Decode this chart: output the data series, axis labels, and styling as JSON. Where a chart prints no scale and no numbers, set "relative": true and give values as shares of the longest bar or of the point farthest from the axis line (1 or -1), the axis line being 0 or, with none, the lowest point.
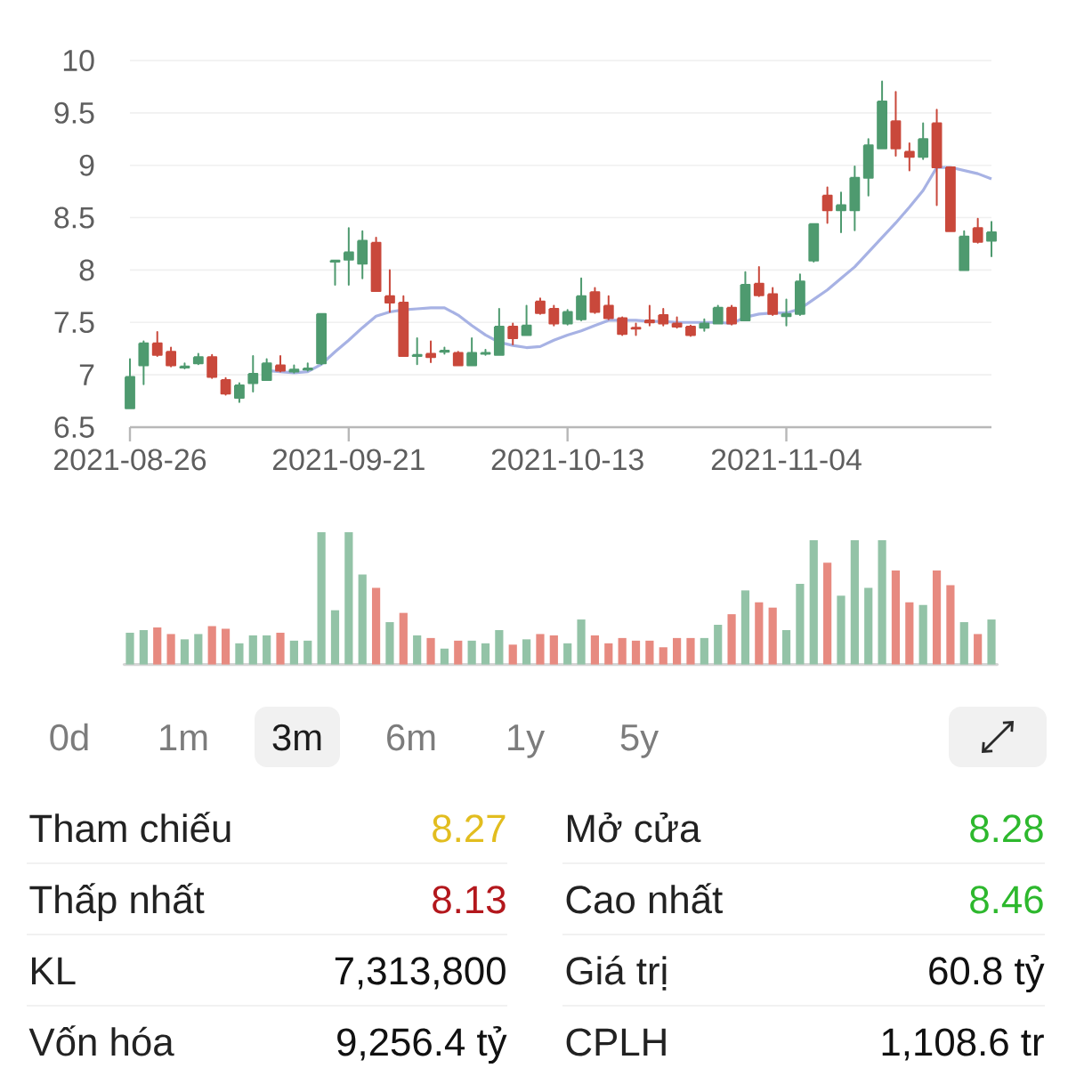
{
  "chart_data": [
    {
      "type": "candlestick",
      "categories": [
        "2021-08-26",
        null,
        null,
        null,
        null,
        null,
        null,
        null,
        null,
        null,
        null,
        null,
        null,
        null,
        null,
        null,
        "2021-09-21",
        null,
        null,
        null,
        null,
        null,
        null,
        null,
        null,
        null,
        null,
        null,
        null,
        null,
        null,
        null,
        "2021-10-13",
        null,
        null,
        null,
        null,
        null,
        null,
        null,
        null,
        null,
        null,
        null,
        null,
        null,
        null,
        null,
        "2021-11-04",
        null,
        null,
        null,
        null,
        null,
        null,
        null,
        null,
        null,
        null,
        null,
        null,
        null,
        null,
        null
      ],
      "ohlc": [
        [
          6.68,
          7.15,
          6.68,
          6.98
        ],
        [
          7.09,
          7.32,
          6.91,
          7.3
        ],
        [
          7.3,
          7.41,
          7.18,
          7.19
        ],
        [
          7.22,
          7.26,
          7.08,
          7.09
        ],
        [
          7.07,
          7.11,
          7.06,
          7.08
        ],
        [
          7.11,
          7.2,
          7.1,
          7.17
        ],
        [
          7.17,
          7.19,
          6.97,
          6.98
        ],
        [
          6.95,
          6.97,
          6.81,
          6.82
        ],
        [
          6.78,
          6.92,
          6.74,
          6.9
        ],
        [
          6.92,
          7.18,
          6.84,
          7.01
        ],
        [
          6.95,
          7.15,
          6.95,
          7.11
        ],
        [
          7.09,
          7.18,
          7.03,
          7.04
        ],
        [
          7.03,
          7.09,
          7.02,
          7.05
        ],
        [
          7.05,
          7.11,
          7.04,
          7.06
        ],
        [
          7.11,
          7.58,
          7.1,
          7.58
        ],
        [
          8.08,
          8.09,
          7.86,
          8.09
        ],
        [
          8.1,
          8.4,
          7.86,
          8.17
        ],
        [
          8.06,
          8.37,
          7.92,
          8.28
        ],
        [
          8.26,
          8.31,
          7.8,
          7.8
        ],
        [
          7.75,
          8.0,
          7.6,
          7.69
        ],
        [
          7.69,
          7.75,
          7.18,
          7.18
        ],
        [
          7.18,
          7.35,
          7.1,
          7.19
        ],
        [
          7.2,
          7.32,
          7.12,
          7.17
        ],
        [
          7.22,
          7.26,
          7.2,
          7.23
        ],
        [
          7.21,
          7.22,
          7.09,
          7.09
        ],
        [
          7.09,
          7.35,
          7.09,
          7.21
        ],
        [
          7.2,
          7.24,
          7.19,
          7.21
        ],
        [
          7.19,
          7.63,
          7.19,
          7.46
        ],
        [
          7.46,
          7.49,
          7.29,
          7.35
        ],
        [
          7.38,
          7.66,
          7.38,
          7.47
        ],
        [
          7.7,
          7.73,
          7.58,
          7.59
        ],
        [
          7.63,
          7.66,
          7.47,
          7.49
        ],
        [
          7.49,
          7.62,
          7.48,
          7.6
        ],
        [
          7.53,
          7.92,
          7.52,
          7.75
        ],
        [
          7.79,
          7.83,
          7.59,
          7.6
        ],
        [
          7.66,
          7.75,
          7.53,
          7.54
        ],
        [
          7.54,
          7.55,
          7.38,
          7.39
        ],
        [
          7.45,
          7.49,
          7.38,
          7.44
        ],
        [
          7.52,
          7.66,
          7.47,
          7.5
        ],
        [
          7.57,
          7.63,
          7.47,
          7.49
        ],
        [
          7.49,
          7.55,
          7.45,
          7.46
        ],
        [
          7.46,
          7.47,
          7.37,
          7.38
        ],
        [
          7.45,
          7.53,
          7.42,
          7.49
        ],
        [
          7.49,
          7.66,
          7.49,
          7.64
        ],
        [
          7.64,
          7.66,
          7.48,
          7.49
        ],
        [
          7.52,
          7.98,
          7.52,
          7.86
        ],
        [
          7.87,
          8.03,
          7.75,
          7.76
        ],
        [
          7.77,
          7.83,
          7.57,
          7.58
        ],
        [
          7.56,
          7.72,
          7.47,
          7.58
        ],
        [
          7.58,
          7.96,
          7.57,
          7.89
        ],
        [
          8.09,
          8.44,
          8.08,
          8.44
        ],
        [
          8.71,
          8.79,
          8.45,
          8.57
        ],
        [
          8.57,
          8.74,
          8.36,
          8.62
        ],
        [
          8.57,
          8.99,
          8.38,
          8.88
        ],
        [
          8.88,
          9.25,
          8.71,
          9.19
        ],
        [
          9.16,
          9.8,
          9.16,
          9.61
        ],
        [
          9.42,
          9.7,
          9.09,
          9.16
        ],
        [
          9.13,
          9.21,
          8.95,
          9.08
        ],
        [
          9.08,
          9.4,
          9.06,
          9.25
        ],
        [
          9.4,
          9.53,
          8.62,
          8.98
        ],
        [
          8.98,
          8.98,
          8.37,
          8.37
        ],
        [
          8.0,
          8.37,
          8.0,
          8.32
        ],
        [
          8.4,
          8.49,
          8.26,
          8.27
        ],
        [
          8.28,
          8.46,
          8.13,
          8.36
        ]
      ],
      "colors": [
        "#4e9a6f",
        "#4e9a6f",
        "#c9483b",
        "#c9483b",
        "#4e9a6f",
        "#4e9a6f",
        "#c9483b",
        "#c9483b",
        "#4e9a6f",
        "#4e9a6f",
        "#4e9a6f",
        "#c9483b",
        "#4e9a6f",
        "#4e9a6f",
        "#4e9a6f",
        "#4e9a6f",
        "#4e9a6f",
        "#4e9a6f",
        "#c9483b",
        "#c9483b",
        "#c9483b",
        "#4e9a6f",
        "#c9483b",
        "#4e9a6f",
        "#c9483b",
        "#4e9a6f",
        "#4e9a6f",
        "#4e9a6f",
        "#c9483b",
        "#4e9a6f",
        "#c9483b",
        "#c9483b",
        "#4e9a6f",
        "#4e9a6f",
        "#c9483b",
        "#c9483b",
        "#c9483b",
        "#c9483b",
        "#c9483b",
        "#c9483b",
        "#c9483b",
        "#c9483b",
        "#4e9a6f",
        "#4e9a6f",
        "#c9483b",
        "#4e9a6f",
        "#c9483b",
        "#c9483b",
        "#4e9a6f",
        "#4e9a6f",
        "#4e9a6f",
        "#c9483b",
        "#4e9a6f",
        "#4e9a6f",
        "#4e9a6f",
        "#4e9a6f",
        "#c9483b",
        "#c9483b",
        "#4e9a6f",
        "#c9483b",
        "#c9483b",
        "#4e9a6f",
        "#c9483b",
        "#4e9a6f"
      ],
      "series": [
        {
          "type": "line",
          "color": "#a7b2e4",
          "values": [
            null,
            null,
            null,
            null,
            null,
            null,
            null,
            null,
            null,
            null,
            7.04,
            7.03,
            7.02,
            7.03,
            7.1,
            7.22,
            7.33,
            7.45,
            7.56,
            7.6,
            7.62,
            7.63,
            7.64,
            7.64,
            7.57,
            7.47,
            7.38,
            7.31,
            7.28,
            7.26,
            7.27,
            7.33,
            7.38,
            7.42,
            7.47,
            7.52,
            7.52,
            7.52,
            7.51,
            7.51,
            7.5,
            7.5,
            7.5,
            7.5,
            7.49,
            7.55,
            7.58,
            7.59,
            7.59,
            7.63,
            7.72,
            7.81,
            7.92,
            8.03,
            8.17,
            8.31,
            8.45,
            8.6,
            8.76,
            8.98,
            8.98,
            8.95,
            8.92,
            8.87
          ]
        }
      ],
      "ylim": [
        6.5,
        10
      ],
      "yticks": [
        6.5,
        7,
        7.5,
        8,
        8.5,
        9,
        9.5,
        10
      ],
      "grid": "y"
    },
    {
      "type": "bar",
      "relative": true,
      "categories": [
        null,
        null,
        null,
        null,
        null,
        null,
        null,
        null,
        null,
        null,
        null,
        null,
        null,
        null,
        null,
        null,
        null,
        null,
        null,
        null,
        null,
        null,
        null,
        null,
        null,
        null,
        null,
        null,
        null,
        null,
        null,
        null,
        null,
        null,
        null,
        null,
        null,
        null,
        null,
        null,
        null,
        null,
        null,
        null,
        null,
        null,
        null,
        null,
        null,
        null,
        null,
        null,
        null,
        null,
        null,
        null,
        null,
        null,
        null,
        null,
        null,
        null,
        null,
        null
      ],
      "values": [
        0.24,
        0.26,
        0.28,
        0.23,
        0.19,
        0.23,
        0.29,
        0.27,
        0.16,
        0.22,
        0.22,
        0.24,
        0.18,
        0.18,
        1,
        0.41,
        1,
        0.68,
        0.58,
        0.32,
        0.39,
        0.22,
        0.2,
        0.12,
        0.18,
        0.18,
        0.16,
        0.26,
        0.15,
        0.19,
        0.23,
        0.22,
        0.16,
        0.34,
        0.22,
        0.16,
        0.2,
        0.18,
        0.18,
        0.13,
        0.2,
        0.2,
        0.2,
        0.3,
        0.38,
        0.56,
        0.47,
        0.43,
        0.26,
        0.61,
        0.94,
        0.77,
        0.52,
        0.94,
        0.58,
        0.94,
        0.71,
        0.47,
        0.45,
        0.71,
        0.6,
        0.32,
        0.23,
        0.34
      ],
      "colors": [
        "#93c3a7",
        "#93c3a7",
        "#e78a80",
        "#e78a80",
        "#93c3a7",
        "#93c3a7",
        "#e78a80",
        "#e78a80",
        "#93c3a7",
        "#93c3a7",
        "#93c3a7",
        "#e78a80",
        "#93c3a7",
        "#93c3a7",
        "#93c3a7",
        "#93c3a7",
        "#93c3a7",
        "#93c3a7",
        "#e78a80",
        "#93c3a7",
        "#e78a80",
        "#93c3a7",
        "#e78a80",
        "#93c3a7",
        "#e78a80",
        "#93c3a7",
        "#93c3a7",
        "#93c3a7",
        "#e78a80",
        "#93c3a7",
        "#e78a80",
        "#e78a80",
        "#93c3a7",
        "#93c3a7",
        "#e78a80",
        "#e78a80",
        "#e78a80",
        "#e78a80",
        "#e78a80",
        "#e78a80",
        "#e78a80",
        "#e78a80",
        "#93c3a7",
        "#93c3a7",
        "#e78a80",
        "#93c3a7",
        "#e78a80",
        "#e78a80",
        "#93c3a7",
        "#93c3a7",
        "#93c3a7",
        "#e78a80",
        "#93c3a7",
        "#93c3a7",
        "#93c3a7",
        "#93c3a7",
        "#e78a80",
        "#e78a80",
        "#93c3a7",
        "#e78a80",
        "#e78a80",
        "#93c3a7",
        "#e78a80",
        "#93c3a7"
      ]
    },
    {
      "type": "other",
      "categories": [
        "0d",
        "1m",
        "3m",
        "6m",
        "1y",
        "5y"
      ]
    },
    {
      "type": "other",
      "categories": [
        "Tham chiếu",
        "Mở cửa",
        "Thấp nhất",
        "Cao nhất",
        "KL",
        "Giá trị",
        "Vốn hóa",
        "CPLH"
      ],
      "value_labels": [
        "8.27",
        "8.28",
        "8.13",
        "8.46",
        "7,313,800",
        "60.8 tỷ",
        "9,256.4 tỷ",
        "1,108.6 tr"
      ],
      "colors": [
        "#e2bd1f",
        "#2db82d",
        "#b3171c",
        "#2db82d",
        "#111111",
        "#111111",
        "#111111",
        "#111111"
      ]
    }
  ]
}
